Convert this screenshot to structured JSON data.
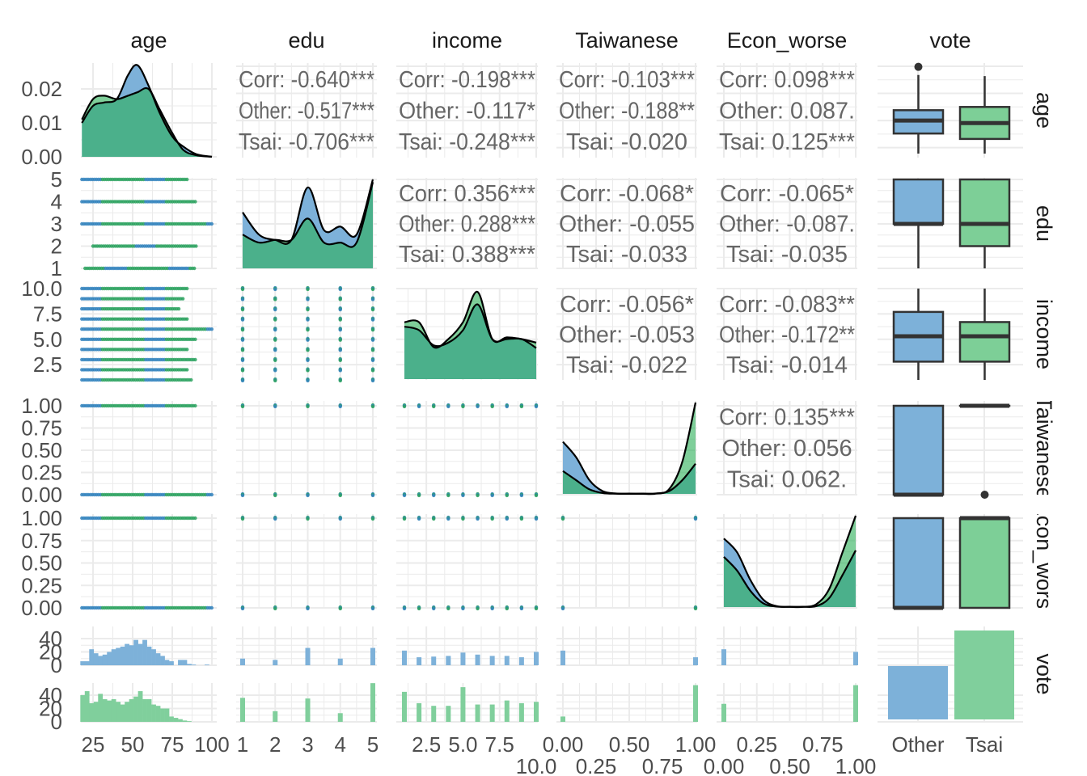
{
  "chart_data": {
    "type": "scatter-matrix",
    "title": "",
    "variables": [
      "age",
      "edu",
      "income",
      "Taiwanese",
      "Econ_worse",
      "vote"
    ],
    "strip_labels": [
      "age",
      "edu",
      "income",
      "Taiwanese",
      "Econ_worse",
      "vote"
    ],
    "groups": [
      {
        "name": "Other",
        "fill": "#7DB1D9",
        "point": "#3182bd"
      },
      {
        "name": "Tsai",
        "fill": "#2AAF57",
        "point": "#2ca25f"
      }
    ],
    "x_ticks": {
      "age": {
        "values": [
          25,
          50,
          75,
          100
        ],
        "labels": [
          "25",
          "50",
          "75",
          "100"
        ]
      },
      "edu": {
        "values": [
          1,
          2,
          3,
          4,
          5
        ],
        "labels": [
          "1",
          "2",
          "3",
          "4",
          "5"
        ]
      },
      "income": {
        "values": [
          2.5,
          5,
          7.5,
          10
        ],
        "labels": [
          "2.5",
          "5.0",
          "7.5",
          "10.0"
        ]
      },
      "Taiwanese": {
        "values": [
          0,
          0.25,
          0.5,
          0.75,
          1
        ],
        "labels": [
          "0.00",
          "0.25",
          "0.50",
          "0.75",
          "1.00"
        ]
      },
      "Econ_worse": {
        "values": [
          0,
          0.25,
          0.5,
          0.75,
          1
        ],
        "labels": [
          "0.00",
          "0.25",
          "0.50",
          "0.75",
          "1.00"
        ]
      },
      "vote": {
        "values": [
          "Other",
          "Tsai"
        ],
        "labels": [
          "Other",
          "Tsai"
        ]
      }
    },
    "y_ticks": {
      "age_density": {
        "values": [
          0.02,
          0.01,
          0.0
        ],
        "labels": [
          "0.02",
          "0.01",
          "0.00"
        ]
      },
      "edu": {
        "values": [
          5,
          4,
          3,
          2,
          1
        ],
        "labels": [
          "5",
          "4",
          "3",
          "2",
          "1"
        ]
      },
      "income": {
        "values": [
          10,
          7.5,
          5,
          2.5
        ],
        "labels": [
          "10.0",
          "7.5",
          "5.0",
          "2.5"
        ]
      },
      "Taiwanese": {
        "values": [
          1,
          0.75,
          0.5,
          0.25,
          0
        ],
        "labels": [
          "1.00",
          "0.75",
          "0.50",
          "0.25",
          "0.00"
        ]
      },
      "Econ_worse": {
        "values": [
          1,
          0.75,
          0.5,
          0.25,
          0
        ],
        "labels": [
          "1.00",
          "0.75",
          "0.50",
          "0.25",
          "0.00"
        ]
      },
      "vote_Other": {
        "values": [
          40,
          20,
          0
        ],
        "labels": [
          "40",
          "20",
          "0"
        ]
      },
      "vote_Tsai": {
        "values": [
          40,
          20,
          0
        ],
        "labels": [
          "40",
          "20",
          "0"
        ]
      }
    },
    "correlations": [
      {
        "row": 0,
        "col": 1,
        "lines": [
          "Corr: -0.640***",
          "Other: -0.517***",
          "Tsai: -0.706***"
        ]
      },
      {
        "row": 0,
        "col": 2,
        "lines": [
          "Corr: -0.198***",
          "Other: -0.117*",
          "Tsai: -0.248***"
        ]
      },
      {
        "row": 0,
        "col": 3,
        "lines": [
          "Corr: -0.103***",
          "Other: -0.188**",
          "Tsai: -0.020"
        ]
      },
      {
        "row": 0,
        "col": 4,
        "lines": [
          "Corr: 0.098***",
          "Other: 0.087.",
          "Tsai: 0.125***"
        ]
      },
      {
        "row": 1,
        "col": 2,
        "lines": [
          "Corr: 0.356***",
          "Other: 0.288***",
          "Tsai: 0.388***"
        ]
      },
      {
        "row": 1,
        "col": 3,
        "lines": [
          "Corr: -0.068*",
          "Other: -0.055",
          "Tsai: -0.033"
        ]
      },
      {
        "row": 1,
        "col": 4,
        "lines": [
          "Corr: -0.065*",
          "Other: -0.087.",
          "Tsai: -0.035"
        ]
      },
      {
        "row": 2,
        "col": 3,
        "lines": [
          "Corr: -0.056*",
          "Other: -0.053",
          "Tsai: -0.022"
        ]
      },
      {
        "row": 2,
        "col": 4,
        "lines": [
          "Corr: -0.083**",
          "Other: -0.172**",
          "Tsai: -0.014"
        ]
      },
      {
        "row": 3,
        "col": 4,
        "lines": [
          "Corr: 0.135***",
          "Other: 0.056",
          "Tsai: 0.062."
        ]
      }
    ],
    "densities": {
      "age": {
        "x": [
          18,
          25,
          32,
          40,
          47,
          53,
          60,
          67,
          75,
          82,
          90,
          100
        ],
        "Other": [
          0.01,
          0.015,
          0.016,
          0.017,
          0.024,
          0.027,
          0.021,
          0.013,
          0.006,
          0.003,
          0.0008,
          0
        ],
        "Tsai": [
          0.011,
          0.017,
          0.018,
          0.017,
          0.018,
          0.019,
          0.02,
          0.014,
          0.007,
          0.002,
          0.0005,
          0
        ]
      },
      "edu": {
        "x": [
          1,
          1.5,
          2,
          2.5,
          3,
          3.5,
          4,
          4.5,
          5
        ],
        "Other": [
          0.63,
          0.38,
          0.32,
          0.32,
          0.91,
          0.43,
          0.47,
          0.38,
          1.0
        ],
        "Tsai": [
          0.38,
          0.29,
          0.32,
          0.32,
          0.56,
          0.29,
          0.29,
          0.29,
          0.97
        ]
      },
      "income": {
        "x": [
          1,
          2,
          3,
          4,
          5,
          6,
          7,
          8,
          9,
          10
        ],
        "Other": [
          0.59,
          0.55,
          0.38,
          0.41,
          0.55,
          0.84,
          0.45,
          0.45,
          0.45,
          0.35
        ],
        "Tsai": [
          0.64,
          0.64,
          0.36,
          0.45,
          0.64,
          0.98,
          0.45,
          0.47,
          0.45,
          0.41
        ]
      },
      "Taiwanese": {
        "x": [
          0,
          0.1,
          0.2,
          0.3,
          0.4,
          0.5,
          0.6,
          0.7,
          0.8,
          0.9,
          1
        ],
        "Other": [
          0.57,
          0.4,
          0.15,
          0.03,
          0.005,
          0.003,
          0.003,
          0.005,
          0.03,
          0.15,
          0.33
        ],
        "Tsai": [
          0.25,
          0.15,
          0.05,
          0.01,
          0.002,
          0.001,
          0.001,
          0.003,
          0.05,
          0.35,
          1.0
        ]
      },
      "Econ_worse": {
        "x": [
          0,
          0.1,
          0.2,
          0.3,
          0.4,
          0.5,
          0.6,
          0.7,
          0.8,
          0.9,
          1
        ],
        "Other": [
          0.75,
          0.6,
          0.3,
          0.08,
          0.01,
          0.003,
          0.003,
          0.01,
          0.1,
          0.35,
          0.62
        ],
        "Tsai": [
          0.55,
          0.4,
          0.18,
          0.04,
          0.005,
          0.002,
          0.002,
          0.03,
          0.2,
          0.6,
          1.0
        ]
      }
    },
    "scatter": {
      "levels": {
        "edu": [
          1,
          2,
          3,
          4,
          5
        ],
        "income": [
          1,
          2,
          3,
          4,
          5,
          6,
          7,
          8,
          9,
          10
        ],
        "Taiwanese": [
          0,
          1
        ],
        "Econ_worse": [
          0,
          1
        ]
      },
      "age_by_edu": [
        [
          20,
          90
        ],
        [
          25,
          90
        ],
        [
          18,
          100
        ],
        [
          18,
          90
        ],
        [
          18,
          85
        ]
      ],
      "age_by_income": [
        [
          18,
          88
        ],
        [
          18,
          85
        ],
        [
          18,
          90
        ],
        [
          18,
          85
        ],
        [
          18,
          90
        ],
        [
          18,
          100
        ],
        [
          18,
          85
        ],
        [
          18,
          80
        ],
        [
          18,
          82
        ],
        [
          18,
          85
        ]
      ],
      "age_by_binary": [
        [
          18,
          100
        ],
        [
          18,
          90
        ]
      ]
    },
    "boxplots": {
      "age": {
        "Other": [
          19.5,
          38,
          50,
          59.5,
          92,
          [
            99.5
          ]
        ],
        "Tsai": [
          19.5,
          33,
          47.6,
          62.5,
          91,
          []
        ]
      },
      "edu": {
        "Other": [
          1,
          3,
          3,
          5,
          5,
          []
        ],
        "Tsai": [
          1,
          2,
          3,
          5,
          5,
          []
        ]
      },
      "income": {
        "Other": [
          1,
          2.8,
          5.3,
          7.7,
          10,
          []
        ],
        "Tsai": [
          1,
          2.8,
          5.3,
          6.7,
          10,
          []
        ]
      },
      "Taiwanese": {
        "Other": [
          0,
          0,
          0,
          1,
          1,
          []
        ],
        "Tsai": [
          1,
          1,
          1,
          1,
          1,
          [
            0
          ]
        ]
      },
      "Econ_worse": {
        "Other": [
          0,
          0,
          0,
          1,
          1,
          []
        ],
        "Tsai": [
          0,
          0,
          1,
          1,
          1,
          []
        ]
      }
    },
    "histograms": {
      "age": {
        "range": [
          17,
          101
        ],
        "Other": [
          6,
          6,
          24,
          18,
          14,
          16,
          20,
          24,
          26,
          28,
          32,
          30,
          38,
          32,
          38,
          28,
          24,
          18,
          14,
          8,
          6,
          0,
          8,
          8,
          2,
          1,
          0,
          0,
          1,
          0
        ],
        "Tsai": [
          40,
          46,
          28,
          30,
          42,
          34,
          32,
          34,
          30,
          26,
          30,
          34,
          38,
          46,
          34,
          34,
          26,
          24,
          20,
          20,
          8,
          6,
          4,
          2,
          1,
          0,
          0,
          0,
          0,
          0
        ]
      },
      "edu": {
        "x": [
          1,
          2,
          3,
          4,
          5
        ],
        "Other": [
          10,
          8,
          26,
          10,
          26
        ],
        "Tsai": [
          36,
          16,
          35,
          13,
          58
        ]
      },
      "income": {
        "x": [
          1,
          2,
          3,
          4,
          5,
          6,
          7,
          8,
          9,
          10
        ],
        "Other": [
          22,
          12,
          13,
          14,
          19,
          16,
          14,
          14,
          12,
          20
        ],
        "Tsai": [
          45,
          28,
          24,
          24,
          52,
          26,
          26,
          32,
          28,
          30
        ]
      },
      "Taiwanese": {
        "x": [
          0,
          1
        ],
        "Other": [
          22,
          12
        ],
        "Tsai": [
          8,
          55
        ]
      },
      "Econ_worse": {
        "x": [
          0,
          1
        ],
        "Other": [
          24,
          20
        ],
        "Tsai": [
          27,
          55
        ]
      }
    },
    "vote_bar_relative": {
      "Other": 0.6,
      "Tsai": 1.0
    }
  }
}
